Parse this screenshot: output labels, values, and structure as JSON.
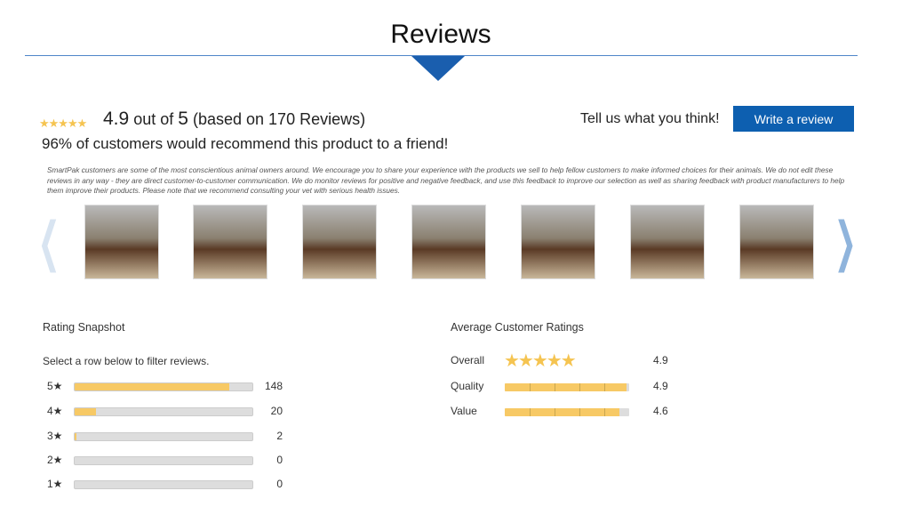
{
  "title": "Reviews",
  "summary": {
    "stars": "★★★★★",
    "rating": "4.9",
    "out_of_text": "out of",
    "max": "5",
    "based_on": "(based on 170 Reviews)",
    "recommend_pct": "96%",
    "recommend_text": "of customers would recommend this product to a friend!"
  },
  "cta": {
    "prompt": "Tell us what you think!",
    "button": "Write a review"
  },
  "disclaimer": "SmartPak customers are some of the most conscientious animal owners around. We encourage you to share your experience with the products we sell to help fellow customers to make informed choices for their animals. We do not edit these reviews in any way - they are direct customer-to-customer communication. We do monitor reviews for positive and negative feedback, and use this feedback to improve our selection as well as sharing feedback with product manufacturers to help them improve their products. Please note that we recommend consulting your vet with serious health issues.",
  "carousel": {
    "prev": "❮",
    "next": "❯",
    "photo_count": 7
  },
  "snapshot": {
    "title": "Rating Snapshot",
    "hint": "Select a row below to filter reviews.",
    "total": 170,
    "rows": [
      {
        "label": "5★",
        "count": 148
      },
      {
        "label": "4★",
        "count": 20
      },
      {
        "label": "3★",
        "count": 2
      },
      {
        "label": "2★",
        "count": 0
      },
      {
        "label": "1★",
        "count": 0
      }
    ]
  },
  "average": {
    "title": "Average Customer Ratings",
    "rows": [
      {
        "label": "Overall",
        "value": "4.9",
        "display": "stars",
        "stars": "★★★★★"
      },
      {
        "label": "Quality",
        "value": "4.9",
        "display": "bar"
      },
      {
        "label": "Value",
        "value": "4.6",
        "display": "bar"
      }
    ]
  },
  "colors": {
    "accent": "#0d5fb0",
    "star": "#f5c451",
    "bar_fill": "#f7c965"
  }
}
